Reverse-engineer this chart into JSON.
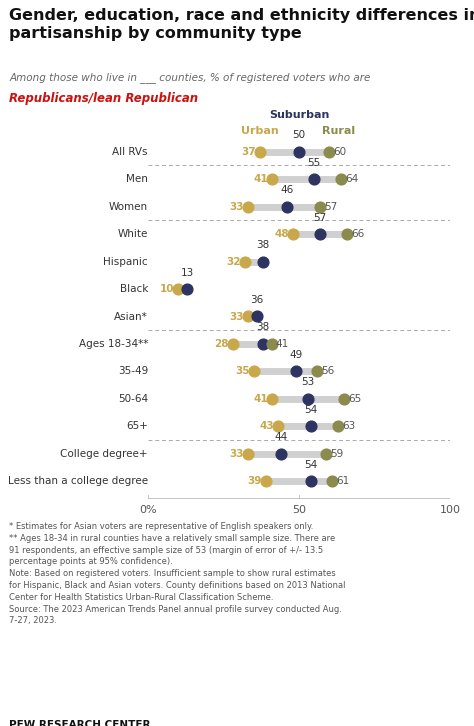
{
  "title": "Gender, education, race and ethnicity differences in\npartisanship by community type",
  "subtitle_plain": "Among those who live in ___ counties, % of registered voters who are",
  "subtitle_red": "Republicans/lean Republican",
  "rows": [
    {
      "label": "All RVs",
      "urban": 37,
      "suburban": 50,
      "rural": 60,
      "group": 0
    },
    {
      "label": "Men",
      "urban": 41,
      "suburban": 55,
      "rural": 64,
      "group": 1
    },
    {
      "label": "Women",
      "urban": 33,
      "suburban": 46,
      "rural": 57,
      "group": 1
    },
    {
      "label": "White",
      "urban": 48,
      "suburban": 57,
      "rural": 66,
      "group": 2
    },
    {
      "label": "Hispanic",
      "urban": 32,
      "suburban": 38,
      "rural": null,
      "group": 2
    },
    {
      "label": "Black",
      "urban": 10,
      "suburban": 13,
      "rural": null,
      "group": 2
    },
    {
      "label": "Asian*",
      "urban": 33,
      "suburban": 36,
      "rural": null,
      "group": 2
    },
    {
      "label": "Ages 18-34**",
      "urban": 28,
      "suburban": 38,
      "rural": 41,
      "group": 3
    },
    {
      "label": "35-49",
      "urban": 35,
      "suburban": 49,
      "rural": 56,
      "group": 3
    },
    {
      "label": "50-64",
      "urban": 41,
      "suburban": 53,
      "rural": 65,
      "group": 3
    },
    {
      "label": "65+",
      "urban": 43,
      "suburban": 54,
      "rural": 63,
      "group": 3
    },
    {
      "label": "College degree+",
      "urban": 33,
      "suburban": 44,
      "rural": 59,
      "group": 4
    },
    {
      "label": "Less than a college degree",
      "urban": 39,
      "suburban": 54,
      "rural": 61,
      "group": 4
    }
  ],
  "footnote_lines": [
    "* Estimates for Asian voters are representative of English speakers only.",
    "** Ages 18-34 in rural counties have a relatively small sample size. There are 91 respondents, an effective sample size of 53 (margin of error of +/- 13.5 percentage points at 95% confidence).",
    "Note: Based on registered voters. Insufficient sample to show rural estimates for Hispanic, Black and Asian voters. County definitions based on 2013 National Center for Health Statistics Urban-Rural Classification Scheme.",
    "Source: The 2023 American Trends Panel annual profile survey conducted Aug. 7-27, 2023."
  ],
  "source_bold": "PEW RESEARCH CENTER",
  "xmin": 0,
  "xmax": 100,
  "urban_color": "#c8a84b",
  "suburban_color": "#2d3461",
  "rural_color": "#8b8b4e",
  "line_color": "#d0d0d0",
  "bg_color": "#ffffff"
}
